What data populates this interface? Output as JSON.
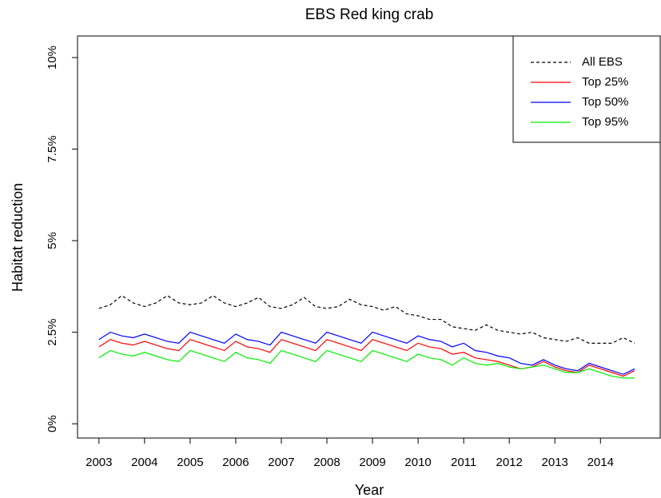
{
  "chart_data": {
    "type": "line",
    "title": "EBS Red king crab",
    "x_label": "Year",
    "y_label": "Habitat reduction",
    "x": [
      2003,
      2003.25,
      2003.5,
      2003.75,
      2004,
      2004.25,
      2004.5,
      2004.75,
      2005,
      2005.25,
      2005.5,
      2005.75,
      2006,
      2006.25,
      2006.5,
      2006.75,
      2007,
      2007.25,
      2007.5,
      2007.75,
      2008,
      2008.25,
      2008.5,
      2008.75,
      2009,
      2009.25,
      2009.5,
      2009.75,
      2010,
      2010.25,
      2010.5,
      2010.75,
      2011,
      2011.25,
      2011.5,
      2011.75,
      2012,
      2012.25,
      2012.5,
      2012.75,
      2013,
      2013.25,
      2013.5,
      2013.75,
      2014,
      2014.25,
      2014.5,
      2014.75
    ],
    "xlim": [
      2002.53,
      2015.31
    ],
    "xticks": [
      2003,
      2004,
      2005,
      2006,
      2007,
      2008,
      2009,
      2010,
      2011,
      2012,
      2013,
      2014
    ],
    "ylim": [
      -0.39,
      10.59
    ],
    "yticks": [
      {
        "value": 0,
        "label": "0%"
      },
      {
        "value": 2.5,
        "label": "2.5%"
      },
      {
        "value": 5,
        "label": "5%"
      },
      {
        "value": 7.5,
        "label": "7.5%"
      },
      {
        "value": 10,
        "label": "10%"
      }
    ],
    "legend_position": "top-right",
    "series": [
      {
        "name": "All EBS",
        "color": "#000000",
        "dashed": true,
        "values": [
          3.15,
          3.25,
          3.5,
          3.3,
          3.2,
          3.3,
          3.5,
          3.3,
          3.25,
          3.3,
          3.5,
          3.3,
          3.2,
          3.3,
          3.45,
          3.2,
          3.15,
          3.25,
          3.45,
          3.2,
          3.15,
          3.2,
          3.4,
          3.25,
          3.2,
          3.1,
          3.2,
          3.0,
          2.95,
          2.85,
          2.85,
          2.65,
          2.6,
          2.55,
          2.7,
          2.55,
          2.5,
          2.45,
          2.5,
          2.35,
          2.3,
          2.25,
          2.35,
          2.2,
          2.2,
          2.2,
          2.35,
          2.2
        ]
      },
      {
        "name": "Top 25%",
        "color": "#ff0000",
        "dashed": false,
        "values": [
          2.1,
          2.3,
          2.2,
          2.15,
          2.25,
          2.15,
          2.05,
          2.0,
          2.3,
          2.2,
          2.1,
          2.0,
          2.25,
          2.1,
          2.05,
          1.95,
          2.3,
          2.2,
          2.1,
          2.0,
          2.3,
          2.2,
          2.1,
          2.0,
          2.3,
          2.2,
          2.1,
          2.0,
          2.2,
          2.1,
          2.05,
          1.9,
          1.95,
          1.8,
          1.75,
          1.7,
          1.6,
          1.5,
          1.55,
          1.7,
          1.55,
          1.45,
          1.4,
          1.6,
          1.5,
          1.4,
          1.3,
          1.45
        ]
      },
      {
        "name": "Top 50%",
        "color": "#0000ff",
        "dashed": false,
        "values": [
          2.3,
          2.5,
          2.4,
          2.35,
          2.45,
          2.35,
          2.25,
          2.2,
          2.5,
          2.4,
          2.3,
          2.2,
          2.45,
          2.3,
          2.25,
          2.15,
          2.5,
          2.4,
          2.3,
          2.2,
          2.5,
          2.4,
          2.3,
          2.2,
          2.5,
          2.4,
          2.3,
          2.2,
          2.4,
          2.3,
          2.25,
          2.1,
          2.2,
          2.0,
          1.95,
          1.85,
          1.8,
          1.65,
          1.6,
          1.75,
          1.6,
          1.5,
          1.45,
          1.65,
          1.55,
          1.45,
          1.35,
          1.5
        ]
      },
      {
        "name": "Top 95%",
        "color": "#00ee00",
        "dashed": false,
        "values": [
          1.8,
          2.0,
          1.9,
          1.85,
          1.95,
          1.85,
          1.75,
          1.7,
          2.0,
          1.9,
          1.8,
          1.7,
          1.95,
          1.8,
          1.75,
          1.65,
          2.0,
          1.9,
          1.8,
          1.7,
          2.0,
          1.9,
          1.8,
          1.7,
          2.0,
          1.9,
          1.8,
          1.7,
          1.9,
          1.8,
          1.75,
          1.6,
          1.8,
          1.65,
          1.6,
          1.65,
          1.55,
          1.5,
          1.55,
          1.6,
          1.5,
          1.4,
          1.4,
          1.5,
          1.4,
          1.3,
          1.25,
          1.25
        ]
      }
    ]
  }
}
